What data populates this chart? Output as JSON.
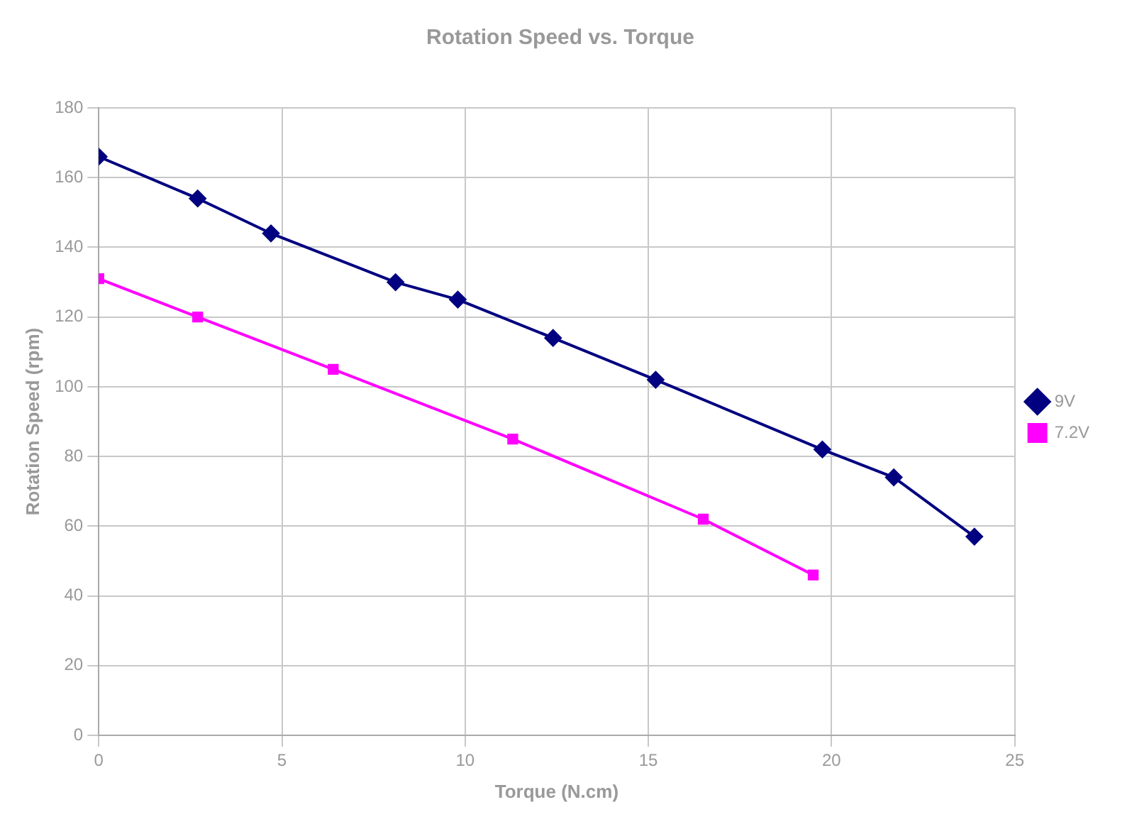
{
  "chart_data": {
    "type": "line",
    "title": "Rotation Speed vs. Torque",
    "xlabel": "Torque (N.cm)",
    "ylabel": "Rotation Speed (rpm)",
    "xlim": [
      0,
      25
    ],
    "xticks": [
      0,
      5,
      10,
      15,
      20,
      25
    ],
    "ylim": [
      0,
      180
    ],
    "yticks": [
      0,
      20,
      40,
      60,
      80,
      100,
      120,
      140,
      160,
      180
    ],
    "grid": true,
    "legend": "right",
    "line_style": "solid",
    "series": [
      {
        "name": "9V",
        "color": "#000080",
        "marker": "diamond",
        "x": [
          0,
          2.7,
          4.7,
          8.1,
          9.8,
          12.4,
          15.2,
          19.75,
          21.7,
          23.9
        ],
        "values": [
          166,
          154,
          144,
          130,
          125,
          114,
          102,
          82,
          74,
          57
        ]
      },
      {
        "name": "7.2V",
        "color": "#ff00ff",
        "marker": "square",
        "x": [
          0,
          2.7,
          6.4,
          11.3,
          16.5,
          19.5
        ],
        "values": [
          131,
          120,
          105,
          85,
          62,
          46
        ]
      }
    ]
  }
}
